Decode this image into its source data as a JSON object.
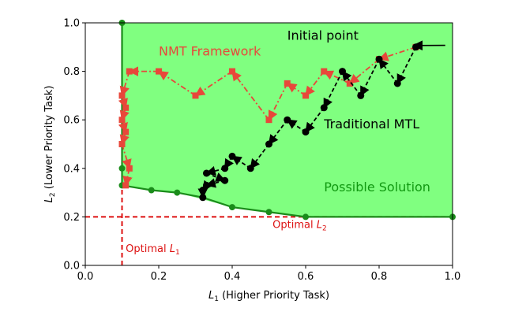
{
  "chart_data": {
    "type": "line",
    "xlabel": {
      "symbol": "L",
      "sub": "1",
      "text": " (Higher Priority Task)"
    },
    "ylabel": {
      "symbol": "L",
      "sub": "2",
      "text": " (Lower Priority Task)"
    },
    "xlim": [
      0.0,
      1.0
    ],
    "ylim": [
      0.0,
      1.0
    ],
    "xticks": [
      0.0,
      0.2,
      0.4,
      0.6,
      0.8,
      1.0
    ],
    "yticks": [
      0.0,
      0.2,
      0.4,
      0.6,
      0.8,
      1.0
    ],
    "xtick_labels": [
      "0.0",
      "0.2",
      "0.4",
      "0.6",
      "0.8",
      "1.0"
    ],
    "ytick_labels": [
      "0.0",
      "0.2",
      "0.4",
      "0.6",
      "0.8",
      "1.0"
    ],
    "grid": false,
    "colors": {
      "region": "#80ff80",
      "frontier": "#1a8c1a",
      "nmt": "#e8473a",
      "mtl": "#000000",
      "optimal": "#dd1111",
      "possible_text": "#119911"
    },
    "feasible_region": {
      "boundary": [
        [
          0.1,
          1.0
        ],
        [
          0.1,
          0.33
        ],
        [
          0.18,
          0.31
        ],
        [
          0.25,
          0.3
        ],
        [
          0.4,
          0.24
        ],
        [
          0.5,
          0.22
        ],
        [
          0.6,
          0.2
        ],
        [
          1.0,
          0.2
        ],
        [
          1.0,
          1.0
        ]
      ]
    },
    "pareto_front": {
      "points": [
        [
          0.1,
          1.0
        ],
        [
          0.1,
          0.6
        ],
        [
          0.1,
          0.4
        ],
        [
          0.1,
          0.33
        ],
        [
          0.18,
          0.31
        ],
        [
          0.25,
          0.3
        ],
        [
          0.32,
          0.28
        ],
        [
          0.4,
          0.24
        ],
        [
          0.5,
          0.22
        ],
        [
          0.6,
          0.2
        ],
        [
          1.0,
          0.2
        ]
      ]
    },
    "series": [
      {
        "name": "NMT Framework",
        "points": [
          [
            0.9,
            0.9
          ],
          [
            0.8,
            0.85
          ],
          [
            0.72,
            0.75
          ],
          [
            0.65,
            0.8
          ],
          [
            0.6,
            0.7
          ],
          [
            0.55,
            0.75
          ],
          [
            0.5,
            0.6
          ],
          [
            0.4,
            0.8
          ],
          [
            0.3,
            0.7
          ],
          [
            0.2,
            0.8
          ],
          [
            0.12,
            0.8
          ],
          [
            0.1,
            0.7
          ],
          [
            0.11,
            0.65
          ],
          [
            0.1,
            0.6
          ],
          [
            0.11,
            0.55
          ],
          [
            0.1,
            0.5
          ],
          [
            0.12,
            0.4
          ],
          [
            0.11,
            0.33
          ]
        ]
      },
      {
        "name": "Traditional MTL",
        "points": [
          [
            0.9,
            0.9
          ],
          [
            0.85,
            0.75
          ],
          [
            0.8,
            0.85
          ],
          [
            0.75,
            0.7
          ],
          [
            0.7,
            0.8
          ],
          [
            0.65,
            0.65
          ],
          [
            0.6,
            0.55
          ],
          [
            0.55,
            0.6
          ],
          [
            0.5,
            0.5
          ],
          [
            0.45,
            0.4
          ],
          [
            0.4,
            0.45
          ],
          [
            0.38,
            0.4
          ],
          [
            0.33,
            0.38
          ],
          [
            0.38,
            0.35
          ],
          [
            0.33,
            0.33
          ],
          [
            0.32,
            0.31
          ],
          [
            0.32,
            0.28
          ]
        ]
      }
    ],
    "annotations": {
      "initial_point": {
        "text": "Initial point",
        "at": [
          0.9,
          0.9
        ],
        "text_at": [
          0.55,
          0.93
        ]
      },
      "nmt_label": {
        "text": "NMT Framework",
        "text_at": [
          0.2,
          0.865
        ]
      },
      "mtl_label": {
        "text": "Traditional MTL",
        "text_at": [
          0.65,
          0.565
        ]
      },
      "possible_label": {
        "text": "Possible Solution",
        "text_at": [
          0.65,
          0.305
        ]
      },
      "optimal_l1": {
        "text": "Optimal ",
        "symbol": "L",
        "sub": "1",
        "text_at": [
          0.11,
          0.055
        ]
      },
      "optimal_l2": {
        "text": "Optimal ",
        "symbol": "L",
        "sub": "2",
        "text_at": [
          0.51,
          0.155
        ]
      }
    },
    "optimal_lines": {
      "x": 0.1,
      "y": 0.2
    }
  }
}
